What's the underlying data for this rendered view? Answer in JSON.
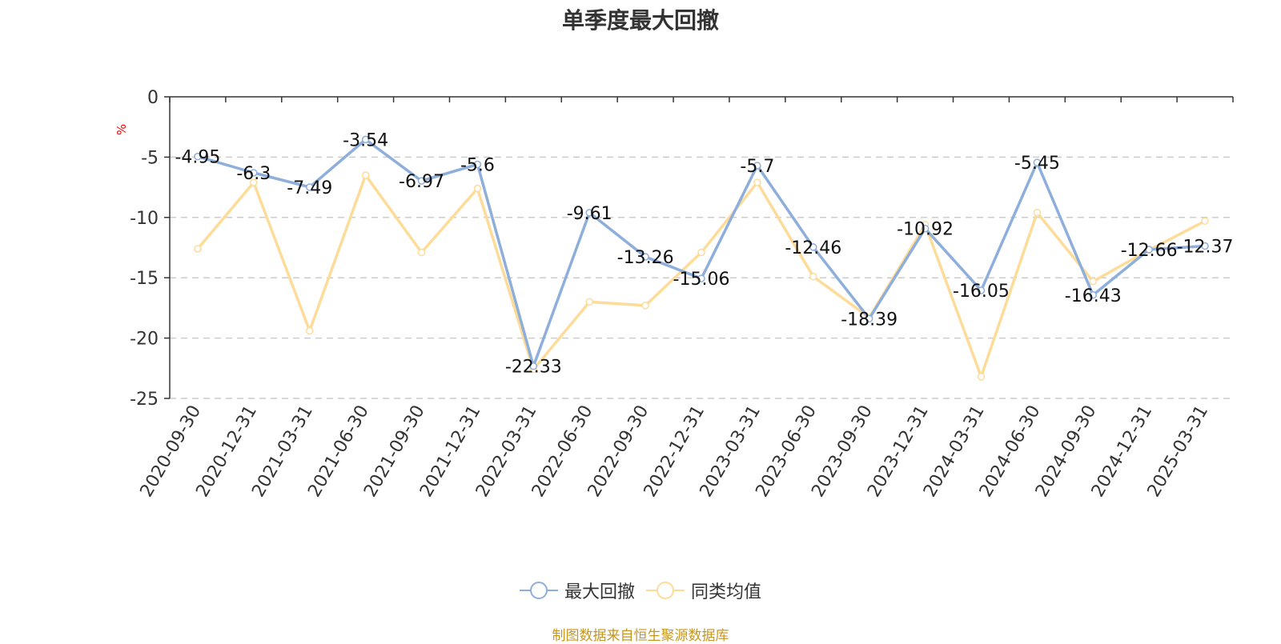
{
  "chart_data": {
    "type": "line",
    "title": "单季度最大回撤",
    "ylabel": "%",
    "ylim": [
      -25,
      0
    ],
    "yticks": [
      0,
      -5,
      -10,
      -15,
      -20,
      -25
    ],
    "grid": true,
    "legend_position": "bottom",
    "categories": [
      "2020-09-30",
      "2020-12-31",
      "2021-03-31",
      "2021-06-30",
      "2021-09-30",
      "2021-12-31",
      "2022-03-31",
      "2022-06-30",
      "2022-09-30",
      "2022-12-31",
      "2023-03-31",
      "2023-06-30",
      "2023-09-30",
      "2023-12-31",
      "2024-03-31",
      "2024-06-30",
      "2024-09-30",
      "2024-12-31",
      "2025-03-31"
    ],
    "series": [
      {
        "name": "最大回撤",
        "color": "#8eaedb",
        "show_labels": true,
        "values": [
          -4.95,
          -6.3,
          -7.49,
          -3.54,
          -6.97,
          -5.6,
          -22.33,
          -9.61,
          -13.26,
          -15.06,
          -5.7,
          -12.46,
          -18.39,
          -10.92,
          -16.05,
          -5.45,
          -16.43,
          -12.66,
          -12.37
        ]
      },
      {
        "name": "同类均值",
        "color": "#fddc9a",
        "show_labels": false,
        "values": [
          -12.6,
          -7.1,
          -19.4,
          -6.5,
          -12.9,
          -7.6,
          -22.6,
          -17.0,
          -17.3,
          -12.9,
          -7.1,
          -14.9,
          -18.3,
          -10.6,
          -23.2,
          -9.6,
          -15.3,
          -12.7,
          -10.3
        ]
      }
    ]
  },
  "source_text": "制图数据来自恒生聚源数据库",
  "colors": {
    "axis": "#333333",
    "grid": "#cccccc",
    "ylabel": "#ff0000",
    "source": "#c8961e"
  }
}
